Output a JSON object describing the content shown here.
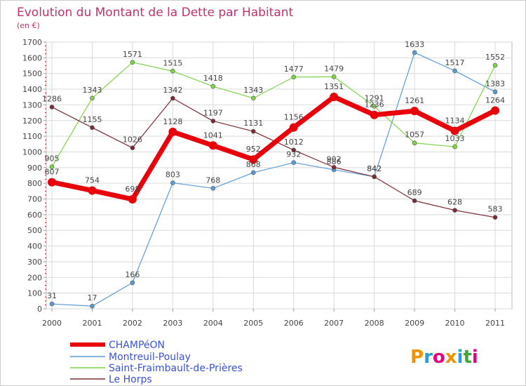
{
  "chart_data": {
    "type": "line",
    "title": "Evolution du Montant de la Dette par Habitant",
    "unit_label": "(en €)",
    "xlabel": "",
    "ylabel": "",
    "categories": [
      "2000",
      "2001",
      "2002",
      "2003",
      "2004",
      "2005",
      "2006",
      "2007",
      "2008",
      "2009",
      "2010",
      "2011"
    ],
    "ylim": [
      0,
      1700
    ],
    "yticks": [
      0,
      100,
      200,
      300,
      400,
      500,
      600,
      700,
      800,
      900,
      1000,
      1100,
      1200,
      1300,
      1400,
      1500,
      1600,
      1700
    ],
    "grid": true,
    "legend_position": "bottom-left",
    "series": [
      {
        "name": "CHAMPéON",
        "color": "#e8000b",
        "values": [
          807,
          754,
          698,
          1128,
          1041,
          952,
          1156,
          1351,
          1236,
          1261,
          1134,
          1264
        ]
      },
      {
        "name": "Montreuil-Poulay",
        "color": "#5b9bd5",
        "values": [
          31,
          17,
          166,
          803,
          768,
          868,
          932,
          886,
          842,
          1633,
          1517,
          1383
        ]
      },
      {
        "name": "Saint-Fraimbault-de-Prières",
        "color": "#7fd34a",
        "values": [
          905,
          1343,
          1571,
          1515,
          1418,
          1343,
          1477,
          1479,
          1291,
          1057,
          1033,
          1552
        ]
      },
      {
        "name": "Le Horps",
        "color": "#7a2b34",
        "values": [
          1286,
          1155,
          1026,
          1342,
          1197,
          1131,
          1012,
          902,
          842,
          689,
          628,
          583
        ]
      }
    ]
  },
  "logo": {
    "text": "Proxiti"
  }
}
